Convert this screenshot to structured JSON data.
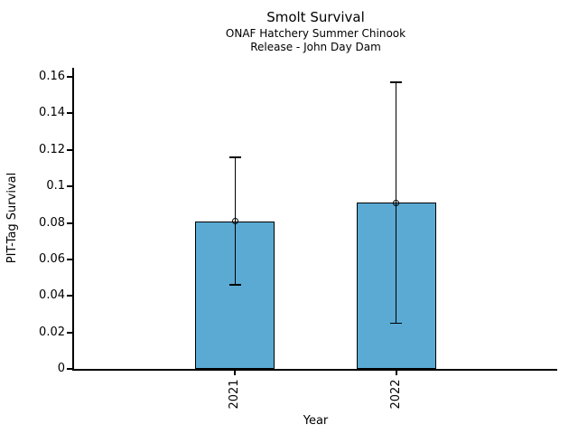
{
  "chart_data": {
    "type": "bar",
    "title": "Smolt Survival",
    "subtitle_line1": "ONAF Hatchery Summer Chinook",
    "subtitle_line2": "Release - John Day Dam",
    "xlabel": "Year",
    "ylabel": "PIT-Tag Survival",
    "categories": [
      "2021",
      "2022"
    ],
    "values": [
      0.081,
      0.091
    ],
    "error_bars": [
      {
        "low": 0.046,
        "high": 0.116
      },
      {
        "low": 0.025,
        "high": 0.157
      }
    ],
    "yticks": [
      0,
      0.02,
      0.04,
      0.06,
      0.08,
      0.1,
      0.12,
      0.14,
      0.16
    ],
    "ytick_labels": [
      "0",
      "0.02",
      "0.04",
      "0.06",
      "0.08",
      "0.1",
      "0.12",
      "0.14",
      "0.16"
    ],
    "ylim": [
      0,
      0.165
    ],
    "xtick_rotation": 90,
    "grid": false,
    "legend": "none",
    "marker": "open-circle",
    "bar_color": "#5aaad4",
    "bar_edge_color": "#000000",
    "error_color": "#000000",
    "background_color": "#ffffff"
  }
}
